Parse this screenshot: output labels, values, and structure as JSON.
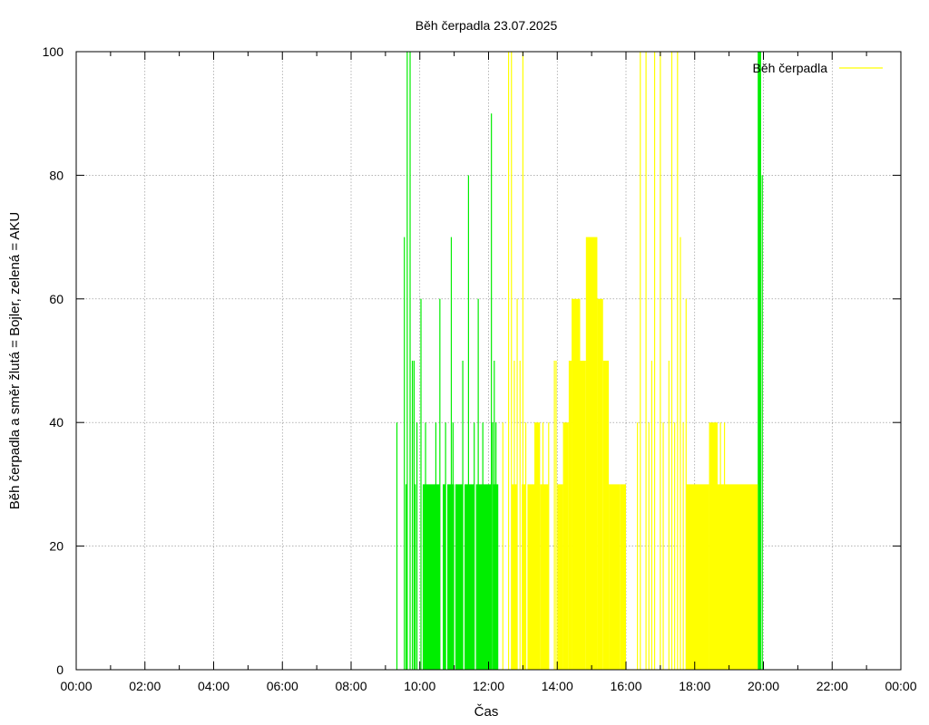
{
  "chart_data": {
    "type": "bar",
    "title": "Běh čerpadla 23.07.2025",
    "xlabel": "Čas",
    "ylabel": "Běh čerpadla a směr žlutá = Bojler, zelená = AKU",
    "xlim": [
      "00:00",
      "24:00"
    ],
    "ylim": [
      0,
      100
    ],
    "x_ticks": [
      "00:00",
      "02:00",
      "04:00",
      "06:00",
      "08:00",
      "10:00",
      "12:00",
      "14:00",
      "16:00",
      "18:00",
      "20:00",
      "22:00",
      "00:00"
    ],
    "y_ticks": [
      0,
      20,
      40,
      60,
      80,
      100
    ],
    "grid": true,
    "legend": {
      "position": "top-right",
      "entries": [
        "Běh čerpadla"
      ]
    },
    "colors": {
      "bojler": "#ffff00",
      "aku": "#00ee00"
    },
    "series": [
      {
        "color": "aku",
        "spikes": [
          [
            "09:20",
            40
          ],
          [
            "09:33",
            70
          ],
          [
            "09:38",
            100
          ],
          [
            "09:43",
            100
          ],
          [
            "09:47",
            50
          ],
          [
            "09:50",
            50
          ],
          [
            "09:55",
            40
          ],
          [
            "10:02",
            60
          ],
          [
            "10:10",
            40
          ],
          [
            "10:28",
            40
          ],
          [
            "10:35",
            60
          ],
          [
            "10:45",
            40
          ],
          [
            "10:55",
            70
          ],
          [
            "10:58",
            40
          ],
          [
            "11:15",
            50
          ],
          [
            "11:25",
            80
          ],
          [
            "11:35",
            40
          ],
          [
            "11:42",
            60
          ],
          [
            "11:50",
            40
          ],
          [
            "12:05",
            90
          ],
          [
            "12:07",
            40
          ],
          [
            "12:10",
            50
          ],
          [
            "12:13",
            40
          ],
          [
            "19:55",
            100
          ],
          [
            "19:58",
            80
          ]
        ],
        "blocks": [
          [
            "09:35",
            "09:38",
            30
          ],
          [
            "09:50",
            "09:53",
            30
          ],
          [
            "10:05",
            "10:35",
            30
          ],
          [
            "10:40",
            "10:45",
            30
          ],
          [
            "10:48",
            "11:00",
            30
          ],
          [
            "11:02",
            "11:15",
            30
          ],
          [
            "11:18",
            "11:35",
            30
          ],
          [
            "11:38",
            "12:05",
            30
          ],
          [
            "12:08",
            "12:17",
            30
          ],
          [
            "19:50",
            "19:55",
            100
          ]
        ]
      },
      {
        "color": "bojler",
        "spikes": [
          [
            "12:25",
            40
          ],
          [
            "12:35",
            100
          ],
          [
            "12:40",
            100
          ],
          [
            "12:45",
            50
          ],
          [
            "12:50",
            60
          ],
          [
            "12:55",
            50
          ],
          [
            "13:00",
            100
          ],
          [
            "13:05",
            40
          ],
          [
            "13:25",
            40
          ],
          [
            "13:35",
            40
          ],
          [
            "13:45",
            40
          ],
          [
            "13:55",
            50
          ],
          [
            "13:58",
            50
          ],
          [
            "16:20",
            40
          ],
          [
            "16:25",
            100
          ],
          [
            "16:35",
            100
          ],
          [
            "16:40",
            40
          ],
          [
            "16:45",
            50
          ],
          [
            "16:50",
            100
          ],
          [
            "17:00",
            100
          ],
          [
            "17:05",
            40
          ],
          [
            "17:15",
            50
          ],
          [
            "17:20",
            100
          ],
          [
            "17:25",
            40
          ],
          [
            "17:30",
            100
          ],
          [
            "17:35",
            70
          ],
          [
            "17:40",
            40
          ],
          [
            "17:45",
            60
          ],
          [
            "18:35",
            40
          ],
          [
            "18:45",
            40
          ],
          [
            "18:52",
            40
          ]
        ],
        "blocks": [
          [
            "12:40",
            "12:50",
            30
          ],
          [
            "12:58",
            "13:05",
            30
          ],
          [
            "13:08",
            "13:20",
            30
          ],
          [
            "13:20",
            "13:30",
            40
          ],
          [
            "13:30",
            "13:45",
            30
          ],
          [
            "14:00",
            "14:10",
            30
          ],
          [
            "14:10",
            "14:20",
            40
          ],
          [
            "14:20",
            "14:25",
            50
          ],
          [
            "14:25",
            "14:40",
            60
          ],
          [
            "14:40",
            "14:50",
            50
          ],
          [
            "14:50",
            "15:10",
            70
          ],
          [
            "15:10",
            "15:20",
            60
          ],
          [
            "15:20",
            "15:30",
            50
          ],
          [
            "15:30",
            "15:50",
            30
          ],
          [
            "15:50",
            "16:00",
            30
          ],
          [
            "17:45",
            "18:25",
            30
          ],
          [
            "18:25",
            "18:40",
            40
          ],
          [
            "18:40",
            "19:50",
            30
          ]
        ]
      }
    ]
  }
}
